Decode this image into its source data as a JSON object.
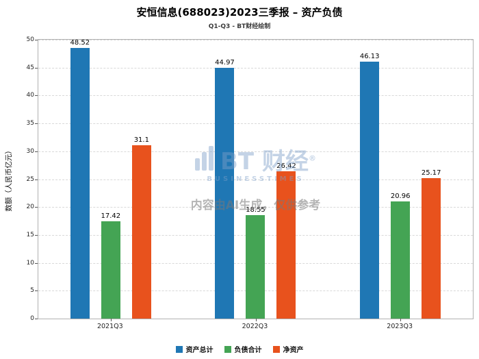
{
  "title": "安恒信息(688023)2023三季报 – 资产负债",
  "subtitle": "Q1-Q3 - BT财经绘制",
  "watermark": {
    "logo_text": "BT 财经",
    "logo_reg": "®",
    "logo_subtext": "BUSINESSTIMES",
    "disclaimer": "内容由AI生成，仅供参考"
  },
  "chart_data": {
    "type": "bar",
    "categories": [
      "2021Q3",
      "2022Q3",
      "2023Q3"
    ],
    "series": [
      {
        "name": "资产总计",
        "color": "#1f77b4",
        "values": [
          48.52,
          44.97,
          46.13
        ]
      },
      {
        "name": "负债合计",
        "color": "#44a454",
        "values": [
          17.42,
          18.55,
          20.96
        ]
      },
      {
        "name": "净资产",
        "color": "#e8521d",
        "values": [
          31.1,
          26.42,
          25.17
        ]
      }
    ],
    "ylabel": "数额（人民币亿元）",
    "xlabel": "",
    "ylim": [
      0,
      50
    ],
    "ytick_step": 5,
    "grid": "dashed-horizontal",
    "legend_position": "bottom"
  }
}
